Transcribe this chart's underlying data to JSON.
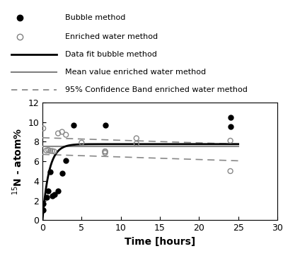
{
  "bubble_x": [
    0.05,
    0.1,
    0.5,
    0.75,
    1.0,
    1.25,
    1.5,
    2.0,
    2.5,
    3.0,
    4.0,
    8.0,
    24.0,
    24.0
  ],
  "bubble_y": [
    1.0,
    1.65,
    2.35,
    3.0,
    4.9,
    2.5,
    2.6,
    3.0,
    4.8,
    6.1,
    9.7,
    9.7,
    10.5,
    9.5
  ],
  "enriched_x": [
    0.1,
    0.5,
    0.75,
    1.0,
    1.25,
    1.5,
    2.0,
    2.5,
    3.0,
    5.0,
    8.0,
    8.0,
    8.0,
    12.0,
    12.0,
    24.0,
    24.0
  ],
  "enriched_y": [
    9.35,
    7.1,
    7.15,
    7.05,
    7.05,
    7.0,
    8.85,
    9.0,
    8.7,
    7.9,
    6.85,
    7.0,
    7.0,
    8.35,
    7.8,
    8.1,
    5.0
  ],
  "fit_bubble_x_start": 0.0,
  "fit_bubble_x_end": 25.0,
  "fit_A": 7.75,
  "fit_k": 1.2,
  "mean_enriched_y": 7.55,
  "ci_upper_start": 8.4,
  "ci_upper_end": 7.75,
  "ci_lower_start": 6.7,
  "ci_lower_end": 6.05,
  "xlim": [
    0,
    30
  ],
  "ylim": [
    0,
    12
  ],
  "xlabel": "Time [hours]",
  "ylabel": "$^{15}$N - atom%",
  "xticks": [
    0,
    5,
    10,
    15,
    20,
    25,
    30
  ],
  "yticks": [
    0,
    2,
    4,
    6,
    8,
    10,
    12
  ],
  "legend_labels": [
    "Bubble method",
    "Enriched water method",
    "Data fit bubble method",
    "Mean value enriched water method",
    "95% Confidence Band enriched water method"
  ],
  "color_black": "#000000",
  "color_gray": "#888888",
  "color_dashed": "#888888"
}
